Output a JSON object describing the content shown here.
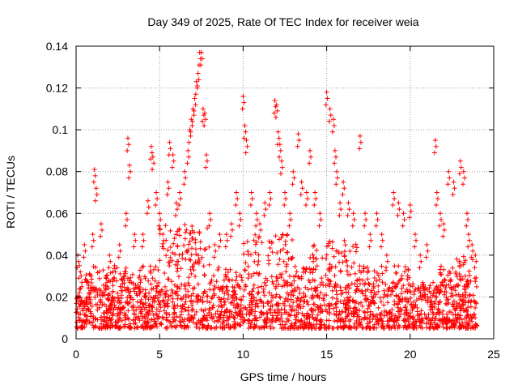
{
  "chart_data": {
    "type": "scatter",
    "title": "Day 349 of 2025, Rate Of TEC Index for receiver weia",
    "xlabel": "GPS time / hours",
    "ylabel": "ROTI / TECUs",
    "xlim": [
      0,
      25
    ],
    "ylim": [
      0,
      0.14
    ],
    "xticks": [
      "0",
      "5",
      "10",
      "15",
      "20",
      "25"
    ],
    "yticks": [
      "0",
      "0.02",
      "0.04",
      "0.06",
      "0.08",
      "0.1",
      "0.12",
      "0.14"
    ],
    "grid": true,
    "marker": "plus",
    "color": "#ff0000",
    "series": [
      {
        "values_summary": "dense cloud of ROTI points from 0 to 24 h, baseline mostly 0.005-0.03 TECU/min",
        "x": [
          0.1,
          0.2,
          0.3,
          0.5,
          0.8,
          1.0,
          1.1,
          1.2,
          1.5,
          1.8,
          2.0,
          2.3,
          2.6,
          3.0,
          3.1,
          3.2,
          3.5,
          3.8,
          4.0,
          4.3,
          4.5,
          4.6,
          4.8,
          5.0,
          5.2,
          5.5,
          5.6,
          5.8,
          6.0,
          6.2,
          6.5,
          6.7,
          6.8,
          6.9,
          7.0,
          7.1,
          7.2,
          7.3,
          7.4,
          7.5,
          7.6,
          7.7,
          7.8,
          8.0,
          8.3,
          8.6,
          9.0,
          9.3,
          9.6,
          9.8,
          10.0,
          10.1,
          10.2,
          10.5,
          10.8,
          11.0,
          11.3,
          11.6,
          11.9,
          12.0,
          12.1,
          12.2,
          12.3,
          12.5,
          12.8,
          13.0,
          13.3,
          13.5,
          13.8,
          14.0,
          14.3,
          14.6,
          15.0,
          15.2,
          15.4,
          15.5,
          15.6,
          15.8,
          16.0,
          16.3,
          16.6,
          17.0,
          17.3,
          17.6,
          18.0,
          18.3,
          18.6,
          19.0,
          19.3,
          19.6,
          20.0,
          20.3,
          20.6,
          21.0,
          21.5,
          21.6,
          21.8,
          22.0,
          22.3,
          22.6,
          23.0,
          23.2,
          23.4,
          23.5,
          23.7,
          23.9
        ],
        "y": [
          0.04,
          0.035,
          0.03,
          0.045,
          0.02,
          0.05,
          0.081,
          0.072,
          0.055,
          0.03,
          0.04,
          0.035,
          0.045,
          0.06,
          0.096,
          0.083,
          0.05,
          0.03,
          0.05,
          0.066,
          0.092,
          0.087,
          0.07,
          0.06,
          0.05,
          0.075,
          0.094,
          0.088,
          0.065,
          0.07,
          0.08,
          0.09,
          0.1,
          0.105,
          0.11,
          0.115,
          0.123,
          0.127,
          0.137,
          0.137,
          0.11,
          0.108,
          0.088,
          0.06,
          0.045,
          0.05,
          0.05,
          0.055,
          0.07,
          0.06,
          0.116,
          0.102,
          0.095,
          0.07,
          0.06,
          0.055,
          0.065,
          0.07,
          0.114,
          0.112,
          0.099,
          0.093,
          0.085,
          0.07,
          0.06,
          0.08,
          0.098,
          0.075,
          0.07,
          0.09,
          0.07,
          0.06,
          0.118,
          0.11,
          0.105,
          0.09,
          0.08,
          0.065,
          0.075,
          0.065,
          0.06,
          0.097,
          0.06,
          0.05,
          0.06,
          0.05,
          0.04,
          0.07,
          0.065,
          0.06,
          0.064,
          0.05,
          0.04,
          0.045,
          0.095,
          0.07,
          0.06,
          0.055,
          0.08,
          0.075,
          0.085,
          0.08,
          0.06,
          0.05,
          0.045,
          0.04
        ]
      }
    ]
  }
}
